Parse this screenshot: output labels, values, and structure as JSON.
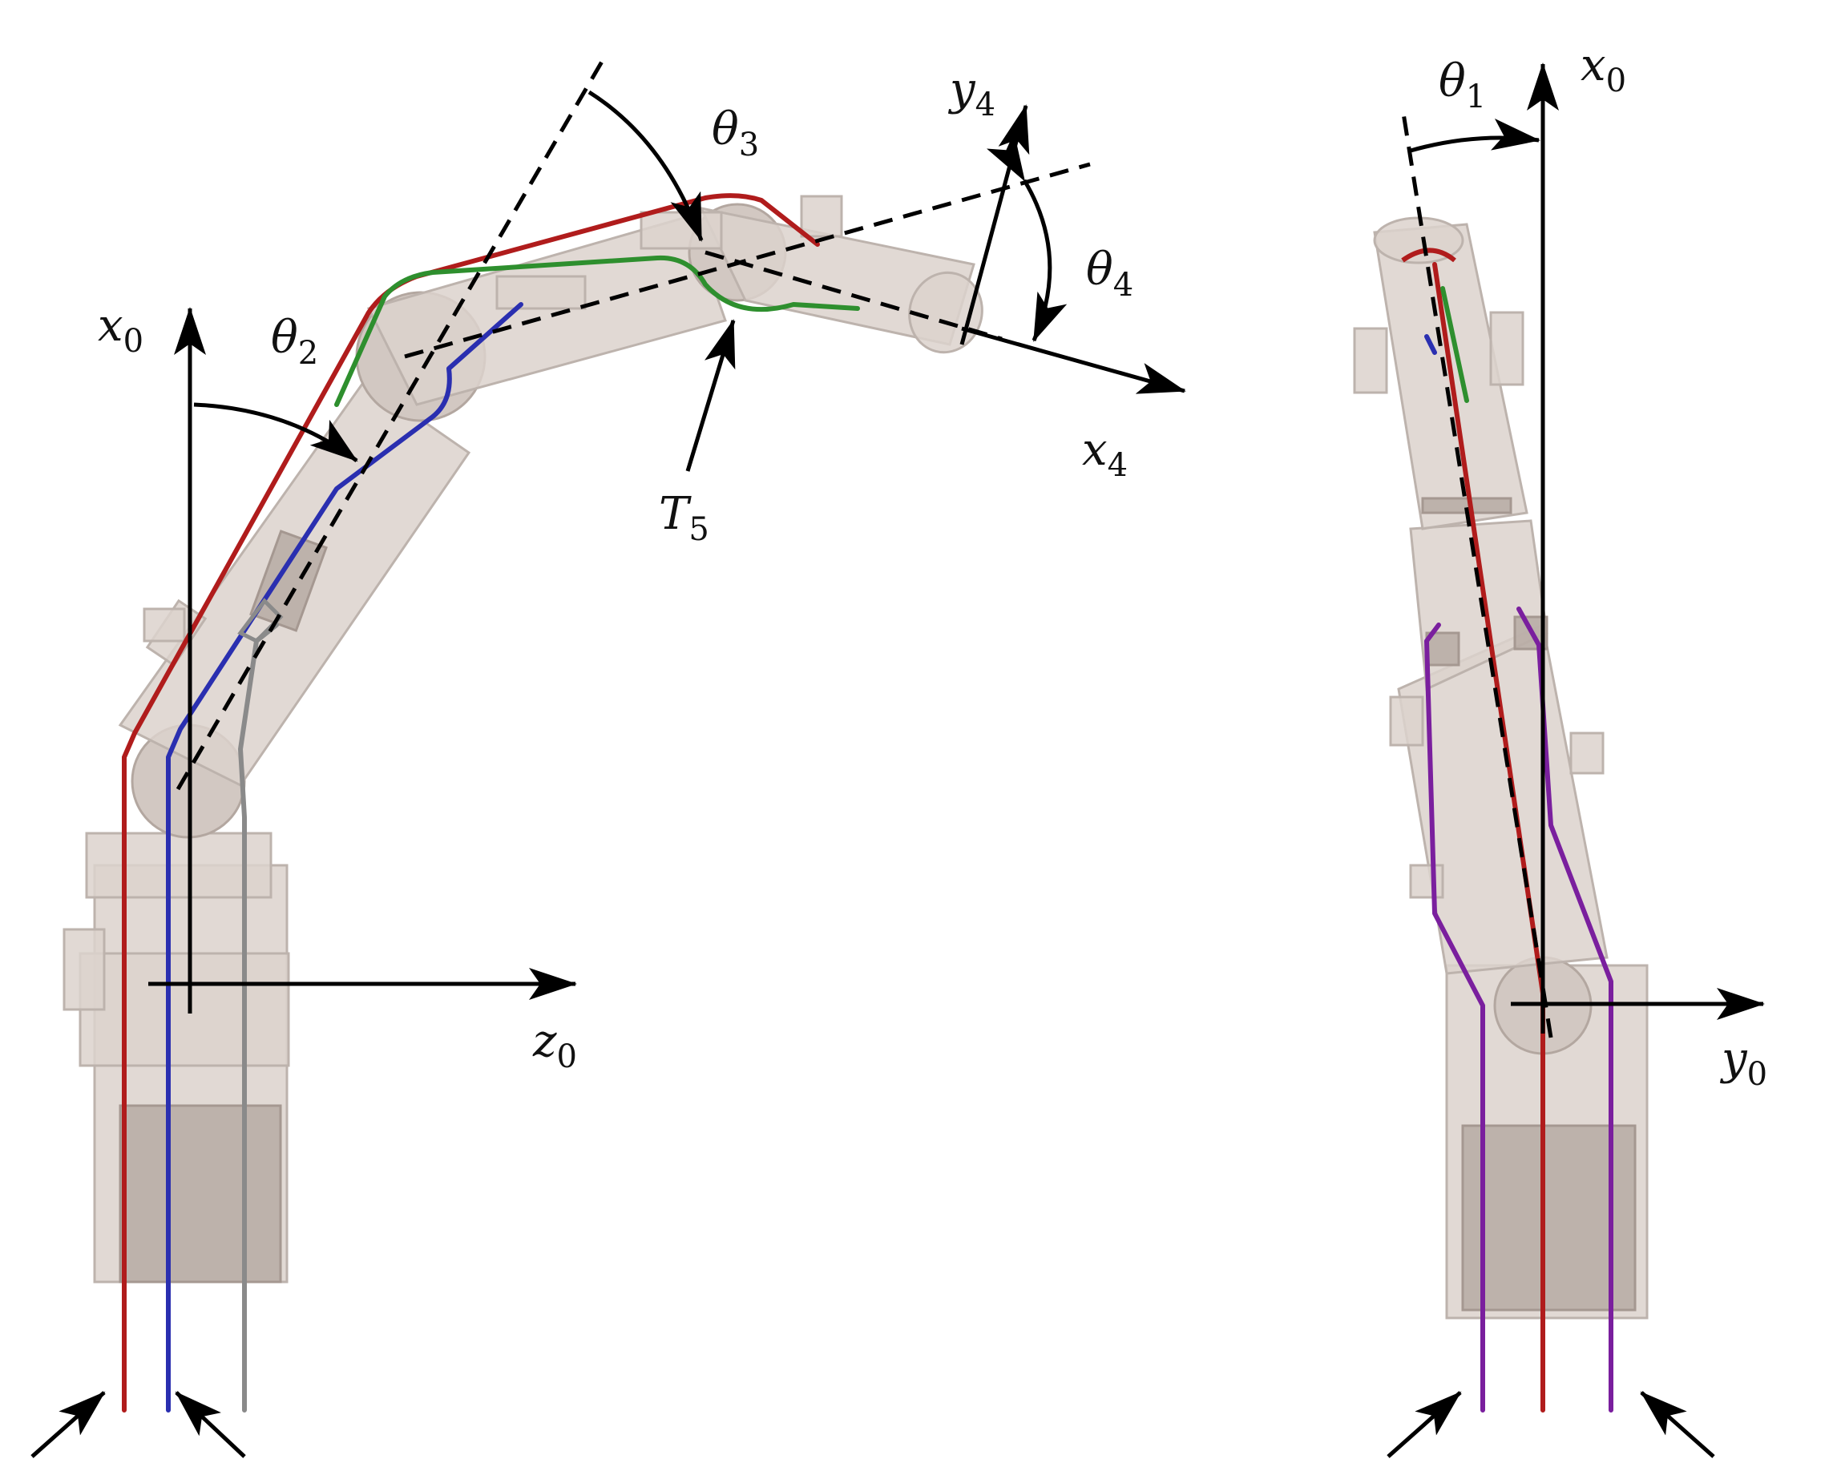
{
  "colors": {
    "tendon_red": "#b01c1c",
    "tendon_blue": "#2a2fb0",
    "tendon_green": "#2e8f2e",
    "tendon_gray": "#8a8a8a",
    "tendon_purple": "#7a1f9e",
    "finger_body": "#dcd2cc"
  },
  "left_view": {
    "axis_x0": "x",
    "axis_x0_sub": "0",
    "axis_z0": "z",
    "axis_z0_sub": "0",
    "angle_theta2": "θ",
    "angle_theta2_sub": "2",
    "angle_theta3": "θ",
    "angle_theta3_sub": "3",
    "angle_theta4": "θ",
    "angle_theta4_sub": "4",
    "axis_y4": "y",
    "axis_y4_sub": "4",
    "axis_x4": "x",
    "axis_x4_sub": "4",
    "tendon_T5": "T",
    "tendon_T5_sub": "5"
  },
  "right_view": {
    "angle_theta1": "θ",
    "angle_theta1_sub": "1",
    "axis_x0": "x",
    "axis_x0_sub": "0",
    "axis_y0": "y",
    "axis_y0_sub": "0"
  }
}
